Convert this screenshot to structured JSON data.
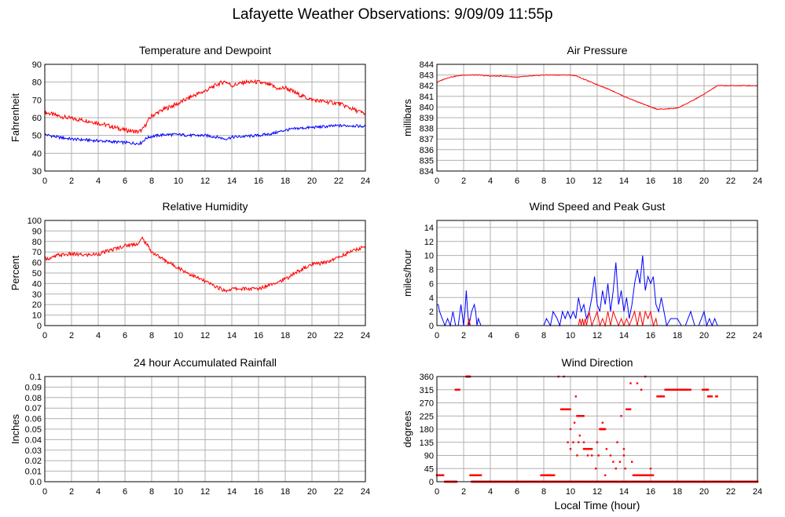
{
  "page": {
    "title": "Lafayette Weather Observations: 9/09/09 11:55p"
  },
  "colors": {
    "grid": "#b0b0b0",
    "series_red": "#ff0000",
    "series_blue": "#0000ff",
    "axis": "#000000"
  },
  "chart_data": [
    {
      "id": "temperature",
      "type": "line",
      "title": "Temperature and Dewpoint",
      "xlabel": "",
      "ylabel": "Fahrenheit",
      "xlim": [
        0,
        24
      ],
      "ylim": [
        30,
        90
      ],
      "xticks": [
        0,
        2,
        4,
        6,
        8,
        10,
        12,
        14,
        16,
        18,
        20,
        22,
        24
      ],
      "yticks": [
        30,
        40,
        50,
        60,
        70,
        80,
        90
      ],
      "grid": true,
      "series": [
        {
          "color": "#ff0000",
          "noise": 1.2,
          "x": [
            0,
            1,
            2,
            3,
            4,
            5,
            6,
            7,
            7.3,
            7.7,
            8,
            9,
            10,
            11,
            12,
            13,
            13.5,
            14,
            15,
            16,
            17,
            17.5,
            18,
            19,
            20,
            21,
            22,
            23,
            24
          ],
          "y": [
            63,
            61,
            59.5,
            58.5,
            57,
            55,
            53,
            52,
            53,
            58,
            61,
            65,
            68,
            72,
            75,
            79,
            80.5,
            78,
            80,
            80,
            78,
            76,
            77,
            73,
            70,
            69,
            68,
            65,
            62
          ]
        },
        {
          "color": "#0000ff",
          "noise": 0.8,
          "x": [
            0,
            1,
            2,
            3,
            4,
            5,
            6,
            7,
            7.2,
            7.6,
            8,
            9,
            10,
            11,
            12,
            13,
            13.5,
            14,
            15,
            16,
            17,
            18,
            19,
            20,
            21,
            22,
            23,
            24
          ],
          "y": [
            50.5,
            49,
            48,
            47.5,
            47,
            46.5,
            46,
            45.5,
            45.8,
            48.5,
            49.5,
            50.5,
            50.5,
            50,
            50,
            49,
            48,
            49,
            49.5,
            50,
            51,
            53,
            54,
            54.5,
            55,
            55.5,
            55.5,
            55
          ]
        }
      ]
    },
    {
      "id": "pressure",
      "type": "line",
      "title": "Air Pressure",
      "xlabel": "",
      "ylabel": "millibars",
      "xlim": [
        0,
        24
      ],
      "ylim": [
        834,
        844
      ],
      "xticks": [
        0,
        2,
        4,
        6,
        8,
        10,
        12,
        14,
        16,
        18,
        20,
        22,
        24
      ],
      "yticks": [
        834,
        835,
        836,
        837,
        838,
        839,
        840,
        841,
        842,
        843,
        844
      ],
      "grid": true,
      "series": [
        {
          "color": "#ff0000",
          "noise": 0.04,
          "x": [
            0,
            0.5,
            1,
            2,
            3,
            4,
            5,
            6,
            7,
            8,
            9,
            10,
            10.5,
            11,
            12,
            13,
            14,
            15,
            16,
            16.5,
            17,
            18,
            19,
            20,
            21,
            22,
            23,
            24
          ],
          "y": [
            842.3,
            842.6,
            842.8,
            843,
            843,
            842.9,
            842.9,
            842.8,
            842.9,
            843,
            843,
            843,
            842.9,
            842.6,
            842.1,
            841.6,
            841,
            840.5,
            840,
            839.8,
            839.8,
            839.9,
            840.5,
            841.2,
            842,
            842,
            842,
            842
          ]
        }
      ]
    },
    {
      "id": "humidity",
      "type": "line",
      "title": "Relative Humidity",
      "xlabel": "",
      "ylabel": "Percent",
      "xlim": [
        0,
        24
      ],
      "ylim": [
        0,
        100
      ],
      "xticks": [
        0,
        2,
        4,
        6,
        8,
        10,
        12,
        14,
        16,
        18,
        20,
        22,
        24
      ],
      "yticks": [
        0,
        10,
        20,
        30,
        40,
        50,
        60,
        70,
        80,
        90,
        100
      ],
      "grid": true,
      "series": [
        {
          "color": "#ff0000",
          "noise": 1.8,
          "x": [
            0,
            0.5,
            1,
            2,
            3,
            4,
            5,
            6,
            7,
            7.3,
            7.6,
            8,
            9,
            10,
            11,
            12,
            13,
            13.5,
            14,
            15,
            16,
            17,
            18,
            19,
            20,
            21,
            22,
            23,
            24
          ],
          "y": [
            64,
            64,
            67,
            68,
            67,
            68,
            72,
            76,
            78,
            83,
            78,
            70,
            62,
            55,
            48,
            42,
            36,
            33,
            35,
            35,
            35,
            40,
            44,
            52,
            58,
            60,
            65,
            71,
            75
          ]
        }
      ]
    },
    {
      "id": "wind-speed",
      "type": "line",
      "title": "Wind Speed and Peak Gust",
      "xlabel": "",
      "ylabel": "miles/hour",
      "xlim": [
        0,
        24
      ],
      "ylim": [
        0,
        15
      ],
      "xticks": [
        0,
        2,
        4,
        6,
        8,
        10,
        12,
        14,
        16,
        18,
        20,
        22,
        24
      ],
      "yticks": [
        0,
        2,
        4,
        6,
        8,
        10,
        12,
        14
      ],
      "grid": true,
      "series": [
        {
          "color": "#0000ff",
          "noise": 0,
          "x": [
            0,
            0.1,
            0.2,
            0.4,
            0.6,
            0.8,
            1.0,
            1.2,
            1.4,
            1.6,
            1.8,
            2.0,
            2.1,
            2.2,
            2.3,
            2.4,
            2.6,
            2.8,
            2.9,
            3.0,
            3.1,
            3.3,
            8,
            8.2,
            8.5,
            8.7,
            9.0,
            9.2,
            9.4,
            9.6,
            9.8,
            10.0,
            10.2,
            10.4,
            10.6,
            10.8,
            11.0,
            11.2,
            11.4,
            11.6,
            11.8,
            12.0,
            12.2,
            12.4,
            12.6,
            12.8,
            13.0,
            13.2,
            13.4,
            13.6,
            13.8,
            14.0,
            14.2,
            14.4,
            14.6,
            14.8,
            15.0,
            15.2,
            15.4,
            15.6,
            15.8,
            16.0,
            16.2,
            16.4,
            16.6,
            16.8,
            17.0,
            17.2,
            17.5,
            18.0,
            18.3,
            18.6,
            19.0,
            19.3,
            19.6,
            19.8,
            20.0,
            20.2,
            20.4,
            20.6,
            20.8,
            21.0,
            24
          ],
          "y": [
            3,
            3,
            2,
            1,
            0,
            1,
            0,
            2,
            0,
            0,
            3,
            0,
            2,
            5,
            2,
            0,
            2,
            3,
            2,
            0,
            1,
            0,
            0,
            1,
            0,
            2,
            1,
            0,
            2,
            1,
            2,
            1,
            2,
            1,
            4,
            2,
            3,
            1,
            2,
            4,
            7,
            3,
            2,
            5,
            3,
            6,
            2,
            5,
            9,
            3,
            5,
            2,
            4,
            1,
            3,
            6,
            8,
            6,
            10,
            5,
            7,
            6,
            7,
            3,
            2,
            4,
            2,
            0,
            1,
            1,
            0,
            0,
            2,
            0,
            0,
            1,
            2,
            0,
            1,
            0,
            1,
            0,
            0
          ]
        },
        {
          "color": "#ff0000",
          "noise": 0,
          "x": [
            0,
            2.3,
            2.4,
            2.5,
            10.6,
            10.7,
            10.8,
            10.9,
            11.0,
            11.1,
            11.2,
            11.4,
            11.6,
            11.8,
            12.0,
            12.2,
            12.4,
            12.6,
            12.8,
            13.0,
            13.2,
            13.4,
            13.6,
            13.8,
            14.0,
            14.2,
            14.4,
            14.6,
            14.8,
            15.0,
            15.2,
            15.4,
            15.6,
            15.8,
            16.0,
            16.2,
            16.4,
            16.5,
            24
          ],
          "y": [
            0,
            0,
            1,
            0,
            0,
            1,
            0,
            1,
            0,
            1,
            0,
            2,
            0,
            1,
            2,
            0,
            1,
            0,
            2,
            0,
            2,
            1,
            0,
            1,
            0,
            1,
            0,
            1,
            2,
            0,
            2,
            0,
            2,
            1,
            2,
            0,
            1,
            0,
            0
          ]
        }
      ]
    },
    {
      "id": "rainfall",
      "type": "line",
      "title": "24 hour Accumulated Rainfall",
      "xlabel": "",
      "ylabel": "Inches",
      "xlim": [
        0,
        24
      ],
      "ylim": [
        0,
        0.1
      ],
      "xticks": [
        0,
        2,
        4,
        6,
        8,
        10,
        12,
        14,
        16,
        18,
        20,
        22,
        24
      ],
      "yticks": [
        0.0,
        0.01,
        0.02,
        0.03,
        0.04,
        0.05,
        0.06,
        0.07,
        0.08,
        0.09,
        0.1
      ],
      "ytick_labels": [
        "0.0",
        "0.01",
        "0.02",
        "0.03",
        "0.04",
        "0.05",
        "0.06",
        "0.07",
        "0.08",
        "0.09",
        "0.1"
      ],
      "grid": true,
      "series": [
        {
          "color": "#ff0000",
          "noise": 0,
          "x": [
            0,
            24
          ],
          "y": [
            0,
            0
          ]
        }
      ]
    },
    {
      "id": "wind-direction",
      "type": "scatter",
      "title": "Wind Direction",
      "xlabel": "Local Time (hour)",
      "ylabel": "degrees",
      "xlim": [
        0,
        24
      ],
      "ylim": [
        0,
        360
      ],
      "xticks": [
        0,
        2,
        4,
        6,
        8,
        10,
        12,
        14,
        16,
        18,
        20,
        22,
        24
      ],
      "yticks": [
        0,
        45,
        90,
        135,
        180,
        225,
        270,
        315,
        360
      ],
      "grid": true,
      "series": [
        {
          "color": "#ff0000",
          "runs": [
            [
              0,
              0.5,
              22
            ],
            [
              0.6,
              1.5,
              0
            ],
            [
              1.4,
              1.7,
              315
            ],
            [
              2.2,
              2.5,
              360
            ],
            [
              2.5,
              3.3,
              22
            ],
            [
              2.6,
              24,
              0
            ],
            [
              7.8,
              8.0,
              22
            ],
            [
              8.1,
              8.8,
              22
            ],
            [
              9.3,
              10.0,
              248
            ],
            [
              10.5,
              11.0,
              225
            ],
            [
              11.0,
              11.5,
              112
            ],
            [
              12.2,
              12.6,
              180
            ],
            [
              14.2,
              14.5,
              248
            ],
            [
              14.7,
              16.2,
              22
            ],
            [
              16.6,
              17.0,
              292
            ],
            [
              17.1,
              19.0,
              315
            ],
            [
              19.9,
              20.3,
              315
            ],
            [
              20.3,
              20.6,
              292
            ],
            [
              20.9,
              21.0,
              292
            ],
            [
              24,
              24,
              0
            ]
          ],
          "x": [
            1.3,
            8.6,
            9.5,
            9.8,
            10.0,
            10.2,
            10.4,
            10.5,
            10.6,
            10.7,
            11.0,
            11.3,
            11.6,
            11.9,
            12.1,
            12.4,
            12.7,
            13.0,
            13.2,
            13.5,
            13.8,
            14.0,
            14.1,
            14.5,
            15.0,
            15.3,
            15.6,
            16.0,
            16.5,
            10.0,
            10.3,
            11.6,
            12.0,
            12.3,
            12.6,
            13.4,
            9.1,
            13.7,
            14.0,
            14.6,
            15.3
          ],
          "y": [
            0,
            22,
            360,
            135,
            112,
            135,
            292,
            90,
            135,
            158,
            135,
            90,
            112,
            45,
            90,
            202,
            112,
            90,
            68,
            135,
            225,
            90,
            45,
            337,
            337,
            315,
            360,
            45,
            292,
            180,
            202,
            90,
            135,
            180,
            22,
            45,
            360,
            68,
            112,
            68,
            22
          ]
        }
      ]
    }
  ]
}
